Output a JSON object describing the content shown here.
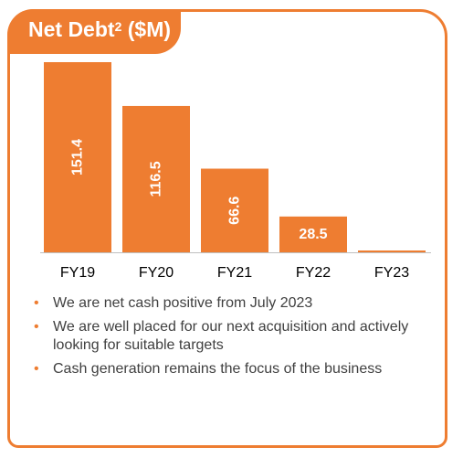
{
  "title": {
    "main": "Net Debt",
    "sup": "2",
    "unit": " ($M)"
  },
  "colors": {
    "accent": "#ee7d31",
    "text": "#404040",
    "baseline": "#bfbfbf"
  },
  "chart_data": {
    "type": "bar",
    "title": "Net Debt2 ($M)",
    "categories": [
      "FY19",
      "FY20",
      "FY21",
      "FY22",
      "FY23"
    ],
    "values": [
      151.4,
      116.5,
      66.6,
      28.5,
      0
    ],
    "labels": [
      "151.4",
      "116.5",
      "66.6",
      "28.5",
      ""
    ],
    "grid": false,
    "legend": "none"
  },
  "bullets": [
    {
      "icon": "bullet-dot",
      "text": "We are net cash positive from July 2023"
    },
    {
      "icon": "bullet-dot",
      "text": "We are well placed for our next acquisition and actively looking for suitable targets"
    },
    {
      "icon": "bullet-dot",
      "text": "Cash generation remains the focus of the business"
    }
  ]
}
